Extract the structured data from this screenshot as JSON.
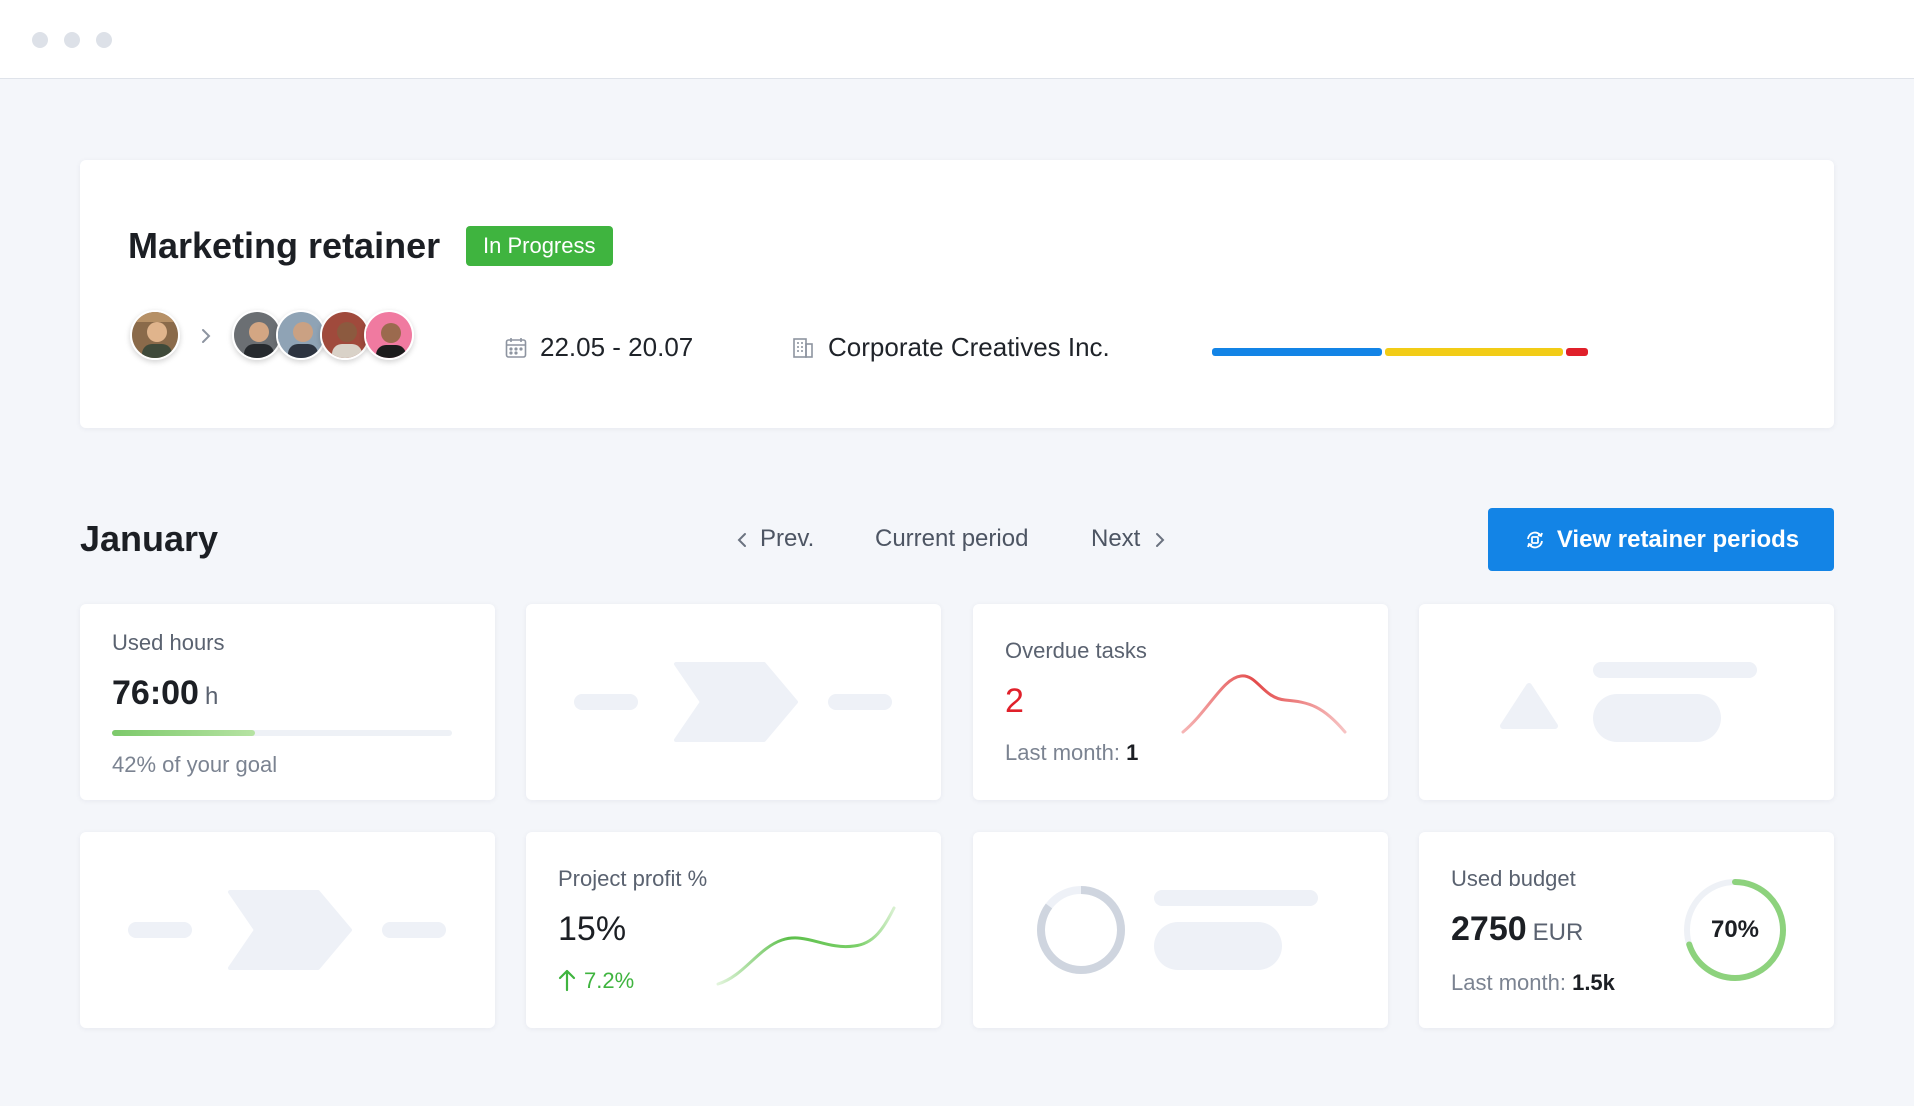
{
  "window": {
    "controls": [
      "window-dot",
      "window-dot",
      "window-dot"
    ]
  },
  "project": {
    "title": "Marketing retainer",
    "status": "In Progress",
    "status_color": "#3fb43f",
    "date_range": "22.05 - 20.07",
    "client": "Corporate Creatives Inc.",
    "progress_segments": [
      {
        "color": "#1384e6",
        "fraction": 0.46
      },
      {
        "color": "#f2cc16",
        "fraction": 0.48
      },
      {
        "color": "#e0202a",
        "fraction": 0.06
      }
    ]
  },
  "period": {
    "month": "January",
    "prev_label": "Prev.",
    "current_label": "Current period",
    "next_label": "Next",
    "view_button": "View retainer periods",
    "accent": "#1384e6"
  },
  "tiles": {
    "used_hours": {
      "label": "Used hours",
      "value": "76:00",
      "unit": "h",
      "goal_text": "42% of your goal",
      "progress": 0.42
    },
    "overdue_tasks": {
      "label": "Overdue tasks",
      "value": "2",
      "last_month_label": "Last month:",
      "last_month_value": "1"
    },
    "project_profit": {
      "label": "Project profit %",
      "value": "15%",
      "change": "7.2%"
    },
    "used_budget": {
      "label": "Used budget",
      "value": "2750",
      "unit": "EUR",
      "last_month_label": "Last month:",
      "last_month_value": "1.5k",
      "percent_label": "70%",
      "percent": 0.7
    }
  }
}
